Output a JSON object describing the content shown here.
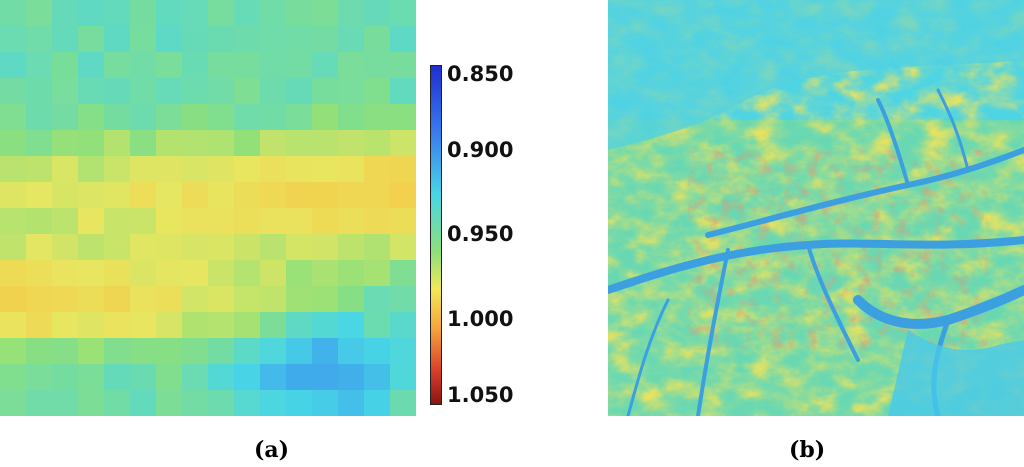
{
  "panels": [
    {
      "caption": "(a)"
    },
    {
      "caption": "(b)"
    }
  ],
  "colorbar": {
    "ticks": [
      "0.850",
      "0.900",
      "0.950",
      "1.000",
      "1.050"
    ]
  },
  "colors": {
    "low": "#1f2fd0",
    "mid_low": "#48d6e6",
    "mid": "#8ee07a",
    "mid_high": "#f2e85a",
    "high": "#d8402a",
    "max": "#8a1412"
  }
}
